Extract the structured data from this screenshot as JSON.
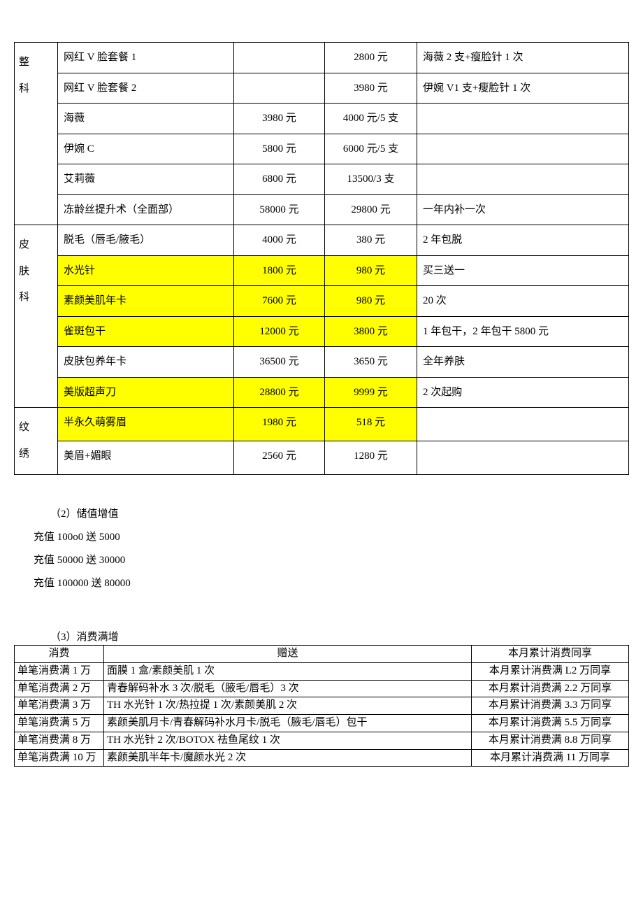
{
  "pricing": {
    "highlight_color": "#ffff00",
    "categories": [
      {
        "label": "整\n科",
        "rows": [
          {
            "item": "网红 V 脸套餐 1",
            "p1": "",
            "p2": "2800 元",
            "note": "海薇 2 支+瘦脸针 1 次",
            "hl": false
          },
          {
            "item": "网红 V 脸套餐 2",
            "p1": "",
            "p2": "3980 元",
            "note": "伊婉 V1 支+瘦脸针 1 次",
            "hl": false
          },
          {
            "item": "海薇",
            "p1": "3980 元",
            "p2": "4000 元/5 支",
            "note": "",
            "hl": false
          },
          {
            "item": "伊婉 C",
            "p1": "5800 元",
            "p2": "6000 元/5 支",
            "note": "",
            "hl": false
          },
          {
            "item": "艾莉薇",
            "p1": "6800 元",
            "p2": "13500/3 支",
            "note": "",
            "hl": false
          },
          {
            "item": "冻龄丝提升术（全面部）",
            "p1": "58000 元",
            "p2": "29800 元",
            "note": "一年内补一次",
            "hl": false
          }
        ]
      },
      {
        "label": "皮\n肤\n科",
        "rows": [
          {
            "item": "脱毛（唇毛/腋毛）",
            "p1": "4000 元",
            "p2": "380 元",
            "note": "2 年包脱",
            "hl": false
          },
          {
            "item": "水光针",
            "p1": "1800 元",
            "p2": "980 元",
            "note": "买三送一",
            "hl": true
          },
          {
            "item": "素颜美肌年卡",
            "p1": "7600 元",
            "p2": "980 元",
            "note": "20 次",
            "hl": true
          },
          {
            "item": "雀斑包干",
            "p1": "12000 元",
            "p2": "3800 元",
            "note": "1 年包干，2 年包干 5800 元",
            "hl": true
          },
          {
            "item": "皮肤包养年卡",
            "p1": "36500 元",
            "p2": "3650 元",
            "note": "全年养肤",
            "hl": false
          },
          {
            "item": "美版超声刀",
            "p1": "28800 元",
            "p2": "9999 元",
            "note": "2 次起购",
            "hl": true
          }
        ]
      },
      {
        "label": "纹\n绣",
        "rows": [
          {
            "item": "半永久萌雾眉",
            "p1": "1980 元",
            "p2": "518 元",
            "note": "",
            "hl": true
          },
          {
            "item": "美眉+媚眼",
            "p1": "2560 元",
            "p2": "1280 元",
            "note": "",
            "hl": false
          }
        ]
      }
    ]
  },
  "section2": {
    "title": "（2）储值增值",
    "lines": [
      "充值 100o0 送 5000",
      "充值 50000 送 30000",
      "充值 100000 送 80000"
    ]
  },
  "section3": {
    "title": "（3）消费满增",
    "headers": {
      "c1": "消费",
      "c2": "赠送",
      "c3": "本月累计消费同享"
    },
    "rows": [
      {
        "c1": "单笔消费满 1 万",
        "c2": "面膜 1 盒/素颜美肌 1 次",
        "c3": "本月累计消费满 L2 万同享"
      },
      {
        "c1": "单笔消费满 2 万",
        "c2": "青春解码补水 3 次/脱毛（腋毛/唇毛）3 次",
        "c3": "本月累计消费满 2.2 万同享"
      },
      {
        "c1": "单笔消费满 3 万",
        "c2": "TH 水光针 1 次/热拉提 1 次/素颜美肌 2 次",
        "c3": "本月累计消费满 3.3 万同享"
      },
      {
        "c1": "单笔消费满 5 万",
        "c2": "素颜美肌月卡/青春解码补水月卡/脱毛（腋毛/唇毛）包干",
        "c3": "本月累计消费满 5.5 万同享"
      },
      {
        "c1": "单笔消费满 8 万",
        "c2": "TH 水光针 2 次/BOTOX 祛鱼尾纹 1 次",
        "c3": "本月累计消费满 8.8 万同享"
      },
      {
        "c1": "单笔消费满 10 万",
        "c2": "素颜美肌半年卡/魔颜水光 2 次",
        "c3": "本月累计消费满 11 万同享"
      }
    ]
  }
}
